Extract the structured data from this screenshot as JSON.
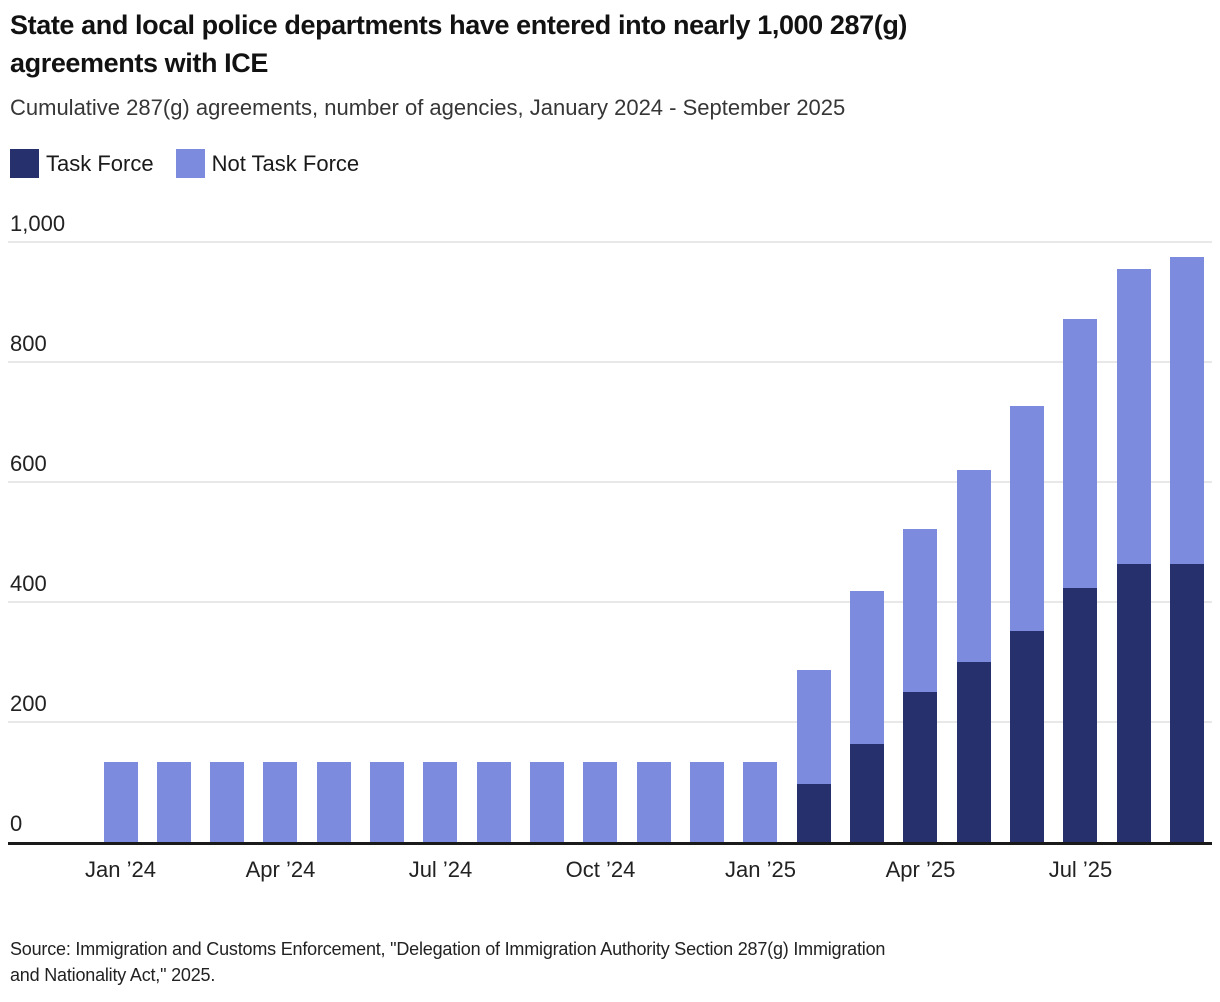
{
  "header": {
    "title_line1": "State and local police departments have entered into nearly 1,000 287(g)",
    "title_line2": "agreements with ICE",
    "subtitle": "Cumulative 287(g) agreements, number of agencies, January 2024 - September 2025"
  },
  "chart_data": {
    "type": "bar",
    "stacked": true,
    "title": "State and local police departments have entered into nearly 1,000 287(g) agreements with ICE",
    "subtitle": "Cumulative 287(g) agreements, number of agencies, January 2024 - September 2025",
    "categories": [
      "Jan ’24",
      "Feb ’24",
      "Mar ’24",
      "Apr ’24",
      "May ’24",
      "Jun ’24",
      "Jul ’24",
      "Aug ’24",
      "Sep ’24",
      "Oct ’24",
      "Nov ’24",
      "Dec ’24",
      "Jan ’25",
      "Feb ’25",
      "Mar ’25",
      "Apr ’25",
      "May ’25",
      "Jun ’25",
      "Jul ’25",
      "Aug ’25",
      "Sep ’25"
    ],
    "series": [
      {
        "name": "Task Force",
        "color": "#25306d",
        "values": [
          0,
          0,
          0,
          0,
          0,
          0,
          0,
          0,
          0,
          0,
          0,
          0,
          0,
          96,
          164,
          250,
          300,
          352,
          424,
          463,
          463
        ]
      },
      {
        "name": "Not Task Force",
        "color": "#7d8bdf",
        "values": [
          133,
          133,
          133,
          133,
          133,
          133,
          133,
          133,
          133,
          133,
          133,
          133,
          133,
          190,
          255,
          272,
          320,
          375,
          447,
          492,
          512
        ]
      }
    ],
    "totals": [
      133,
      133,
      133,
      133,
      133,
      133,
      133,
      133,
      133,
      133,
      133,
      133,
      133,
      286,
      419,
      522,
      620,
      727,
      871,
      955,
      975
    ],
    "x_axis": {
      "ticks": [
        {
          "label": "Jan ’24",
          "index": 0
        },
        {
          "label": "Apr ’24",
          "index": 3
        },
        {
          "label": "Jul ’24",
          "index": 6
        },
        {
          "label": "Oct ’24",
          "index": 9
        },
        {
          "label": "Jan ’25",
          "index": 12
        },
        {
          "label": "Apr ’25",
          "index": 15
        },
        {
          "label": "Jul ’25",
          "index": 18
        }
      ]
    },
    "y_axis": {
      "range": [
        0,
        1000
      ],
      "ticks": [
        {
          "value": 0,
          "label": "0"
        },
        {
          "value": 200,
          "label": "200"
        },
        {
          "value": 400,
          "label": "400"
        },
        {
          "value": 600,
          "label": "600"
        },
        {
          "value": 800,
          "label": "800"
        },
        {
          "value": 1000,
          "label": "1,000"
        }
      ]
    },
    "grid": "horizontal",
    "legend_position": "top-left",
    "colors": {
      "task_force": "#25306d",
      "not_task_force": "#7d8bdf",
      "gridline": "#e8e8e8",
      "axis_line": "#1a1a1a"
    }
  },
  "footer": {
    "source_line1": "Source: Immigration and Customs Enforcement, \"Delegation of Immigration Authority Section 287(g) Immigration",
    "source_line2": "and Nationality Act,\" 2025."
  }
}
